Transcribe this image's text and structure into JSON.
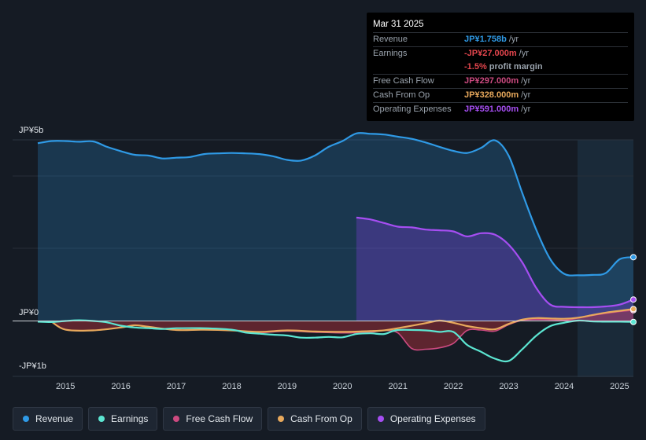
{
  "tooltip": {
    "date": "Mar 31 2025",
    "rows": [
      {
        "label": "Revenue",
        "value": "JP¥1.758b",
        "unit": "/yr",
        "color": "#2f9ae6"
      },
      {
        "label": "Earnings",
        "value": "-JP¥27.000m",
        "unit": "/yr",
        "color": "#e3454d"
      },
      {
        "label": "",
        "value": "-1.5%",
        "unit": "profit margin",
        "color": "#e3454d"
      },
      {
        "label": "Free Cash Flow",
        "value": "JP¥297.000m",
        "unit": "/yr",
        "color": "#cc4a80"
      },
      {
        "label": "Cash From Op",
        "value": "JP¥328.000m",
        "unit": "/yr",
        "color": "#e8a95c"
      },
      {
        "label": "Operating Expenses",
        "value": "JP¥591.000m",
        "unit": "/yr",
        "color": "#a64ef2"
      }
    ]
  },
  "legend": [
    {
      "label": "Revenue",
      "color": "#2f9ae6"
    },
    {
      "label": "Earnings",
      "color": "#5ce6d2"
    },
    {
      "label": "Free Cash Flow",
      "color": "#cc4a80"
    },
    {
      "label": "Cash From Op",
      "color": "#e8a95c"
    },
    {
      "label": "Operating Expenses",
      "color": "#a64ef2"
    }
  ],
  "chart_data": {
    "type": "area",
    "y_tick_labels": {
      "top": "JP¥5b",
      "zero": "JP¥0",
      "bottom": "-JP¥1b"
    },
    "ylim": [
      -1000,
      5000
    ],
    "xlim": [
      2014.5,
      2025.25
    ],
    "x_ticks": [
      "2015",
      "2016",
      "2017",
      "2018",
      "2019",
      "2020",
      "2021",
      "2022",
      "2023",
      "2024",
      "2025"
    ],
    "forecast_start": 2024.25,
    "units": "JP¥ millions",
    "series": [
      {
        "name": "Revenue",
        "color": "#2f9ae6",
        "fill": true,
        "points": [
          [
            2014.5,
            4900
          ],
          [
            2014.75,
            4960
          ],
          [
            2015.0,
            4960
          ],
          [
            2015.25,
            4940
          ],
          [
            2015.5,
            4950
          ],
          [
            2015.75,
            4800
          ],
          [
            2016.0,
            4680
          ],
          [
            2016.25,
            4580
          ],
          [
            2016.5,
            4560
          ],
          [
            2016.75,
            4480
          ],
          [
            2017.0,
            4500
          ],
          [
            2017.25,
            4520
          ],
          [
            2017.5,
            4600
          ],
          [
            2017.75,
            4620
          ],
          [
            2018.0,
            4630
          ],
          [
            2018.25,
            4620
          ],
          [
            2018.5,
            4600
          ],
          [
            2018.75,
            4540
          ],
          [
            2019.0,
            4440
          ],
          [
            2019.25,
            4420
          ],
          [
            2019.5,
            4560
          ],
          [
            2019.75,
            4800
          ],
          [
            2020.0,
            4960
          ],
          [
            2020.25,
            5170
          ],
          [
            2020.5,
            5160
          ],
          [
            2020.75,
            5140
          ],
          [
            2021.0,
            5080
          ],
          [
            2021.25,
            5020
          ],
          [
            2021.5,
            4920
          ],
          [
            2021.75,
            4800
          ],
          [
            2022.0,
            4690
          ],
          [
            2022.25,
            4630
          ],
          [
            2022.5,
            4770
          ],
          [
            2022.75,
            4980
          ],
          [
            2023.0,
            4550
          ],
          [
            2023.25,
            3500
          ],
          [
            2023.5,
            2500
          ],
          [
            2023.75,
            1700
          ],
          [
            2024.0,
            1300
          ],
          [
            2024.25,
            1260
          ],
          [
            2024.5,
            1270
          ],
          [
            2024.75,
            1320
          ],
          [
            2025.0,
            1700
          ],
          [
            2025.25,
            1758
          ]
        ]
      },
      {
        "name": "Operating Expenses",
        "color": "#a64ef2",
        "fill": true,
        "points": [
          [
            2020.25,
            2850
          ],
          [
            2020.5,
            2800
          ],
          [
            2020.75,
            2700
          ],
          [
            2021.0,
            2600
          ],
          [
            2021.25,
            2580
          ],
          [
            2021.5,
            2520
          ],
          [
            2021.75,
            2500
          ],
          [
            2022.0,
            2470
          ],
          [
            2022.25,
            2330
          ],
          [
            2022.5,
            2420
          ],
          [
            2022.75,
            2380
          ],
          [
            2023.0,
            2100
          ],
          [
            2023.25,
            1600
          ],
          [
            2023.5,
            900
          ],
          [
            2023.75,
            450
          ],
          [
            2024.0,
            390
          ],
          [
            2024.25,
            380
          ],
          [
            2024.5,
            380
          ],
          [
            2024.75,
            400
          ],
          [
            2025.0,
            450
          ],
          [
            2025.25,
            591
          ]
        ]
      },
      {
        "name": "Earnings",
        "color": "#5ce6d2",
        "fill": false,
        "points": [
          [
            2014.5,
            -20
          ],
          [
            2014.75,
            -30
          ],
          [
            2015.0,
            0
          ],
          [
            2015.25,
            20
          ],
          [
            2015.5,
            0
          ],
          [
            2015.75,
            -40
          ],
          [
            2016.0,
            -130
          ],
          [
            2016.25,
            -180
          ],
          [
            2016.5,
            -200
          ],
          [
            2016.75,
            -220
          ],
          [
            2017.0,
            -200
          ],
          [
            2017.5,
            -200
          ],
          [
            2018.0,
            -240
          ],
          [
            2018.25,
            -320
          ],
          [
            2018.5,
            -350
          ],
          [
            2018.75,
            -380
          ],
          [
            2019.0,
            -400
          ],
          [
            2019.25,
            -460
          ],
          [
            2019.5,
            -460
          ],
          [
            2019.75,
            -440
          ],
          [
            2020.0,
            -450
          ],
          [
            2020.25,
            -360
          ],
          [
            2020.5,
            -340
          ],
          [
            2020.75,
            -360
          ],
          [
            2021.0,
            -250
          ],
          [
            2021.5,
            -260
          ],
          [
            2021.75,
            -300
          ],
          [
            2022.0,
            -300
          ],
          [
            2022.25,
            -660
          ],
          [
            2022.5,
            -850
          ],
          [
            2022.75,
            -1040
          ],
          [
            2023.0,
            -1100
          ],
          [
            2023.25,
            -770
          ],
          [
            2023.5,
            -400
          ],
          [
            2023.75,
            -140
          ],
          [
            2024.0,
            -50
          ],
          [
            2024.25,
            10
          ],
          [
            2024.5,
            -10
          ],
          [
            2024.75,
            -20
          ],
          [
            2025.0,
            -20
          ],
          [
            2025.25,
            -27
          ]
        ]
      },
      {
        "name": "Free Cash Flow",
        "color": "#cc4a80",
        "fill": true,
        "points": [
          [
            2014.75,
            -20
          ],
          [
            2015.0,
            -240
          ],
          [
            2015.5,
            -260
          ],
          [
            2016.0,
            -180
          ],
          [
            2016.25,
            -120
          ],
          [
            2016.5,
            -160
          ],
          [
            2017.0,
            -250
          ],
          [
            2017.5,
            -240
          ],
          [
            2018.0,
            -260
          ],
          [
            2018.5,
            -320
          ],
          [
            2019.0,
            -280
          ],
          [
            2019.5,
            -310
          ],
          [
            2020.0,
            -330
          ],
          [
            2020.5,
            -310
          ],
          [
            2020.75,
            -260
          ],
          [
            2021.0,
            -330
          ],
          [
            2021.25,
            -760
          ],
          [
            2021.5,
            -780
          ],
          [
            2021.75,
            -740
          ],
          [
            2022.0,
            -620
          ],
          [
            2022.25,
            -260
          ],
          [
            2022.5,
            -250
          ],
          [
            2022.75,
            -280
          ],
          [
            2023.0,
            -100
          ],
          [
            2023.25,
            20
          ],
          [
            2023.5,
            50
          ],
          [
            2023.75,
            40
          ],
          [
            2024.0,
            20
          ],
          [
            2024.25,
            80
          ],
          [
            2024.5,
            150
          ],
          [
            2024.75,
            210
          ],
          [
            2025.0,
            260
          ],
          [
            2025.25,
            297
          ]
        ]
      },
      {
        "name": "Cash From Op",
        "color": "#e8a95c",
        "fill": false,
        "points": [
          [
            2014.75,
            -20
          ],
          [
            2015.0,
            -240
          ],
          [
            2015.5,
            -260
          ],
          [
            2016.0,
            -180
          ],
          [
            2016.25,
            -120
          ],
          [
            2016.5,
            -160
          ],
          [
            2017.0,
            -250
          ],
          [
            2017.5,
            -240
          ],
          [
            2018.0,
            -260
          ],
          [
            2018.5,
            -300
          ],
          [
            2019.0,
            -260
          ],
          [
            2019.5,
            -290
          ],
          [
            2020.0,
            -300
          ],
          [
            2020.5,
            -280
          ],
          [
            2020.75,
            -260
          ],
          [
            2021.0,
            -200
          ],
          [
            2021.5,
            -60
          ],
          [
            2021.75,
            10
          ],
          [
            2022.0,
            -50
          ],
          [
            2022.25,
            -140
          ],
          [
            2022.5,
            -200
          ],
          [
            2022.75,
            -230
          ],
          [
            2023.0,
            -80
          ],
          [
            2023.25,
            40
          ],
          [
            2023.5,
            80
          ],
          [
            2023.75,
            70
          ],
          [
            2024.0,
            60
          ],
          [
            2024.25,
            90
          ],
          [
            2024.5,
            160
          ],
          [
            2024.75,
            230
          ],
          [
            2025.0,
            280
          ],
          [
            2025.25,
            328
          ]
        ]
      }
    ]
  }
}
